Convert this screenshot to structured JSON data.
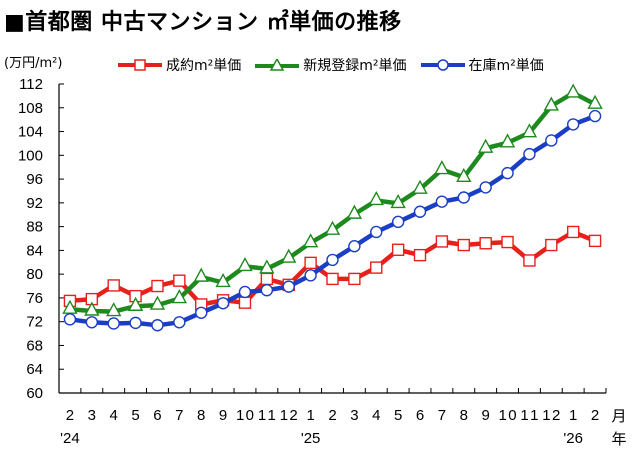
{
  "title": "■首都圏 中古マンション ㎡単価の推移",
  "unit_label": "(万円/m²)",
  "legend": [
    {
      "label": "成約m²単価",
      "color": "#e8201c",
      "marker": "square"
    },
    {
      "label": "新規登録m²単価",
      "color": "#1e8a1e",
      "marker": "triangle"
    },
    {
      "label": "在庫m²単価",
      "color": "#1a3fc4",
      "marker": "circle"
    }
  ],
  "x_axis": {
    "month_labels": [
      "2",
      "3",
      "4",
      "5",
      "6",
      "7",
      "8",
      "9",
      "10",
      "11",
      "12",
      "1",
      "2",
      "3",
      "4",
      "5",
      "6",
      "7",
      "8",
      "9",
      "10",
      "11",
      "12",
      "1",
      "2"
    ],
    "year_labels": [
      {
        "index": 0,
        "label": "'24"
      },
      {
        "index": 11,
        "label": "'25"
      },
      {
        "index": 23,
        "label": "'26"
      }
    ],
    "month_unit": "月",
    "year_unit": "年"
  },
  "chart_data": {
    "type": "line",
    "title": "■首都圏 中古マンション ㎡単価の推移",
    "xlabel": "月 / 年",
    "ylabel": "(万円/m²)",
    "ylim": [
      60,
      112
    ],
    "yticks": [
      60,
      64,
      68,
      72,
      76,
      80,
      84,
      88,
      92,
      96,
      100,
      104,
      108,
      112
    ],
    "grid": false,
    "legend_position": "top",
    "categories": [
      "'24/2",
      "'24/3",
      "'24/4",
      "'24/5",
      "'24/6",
      "'24/7",
      "'24/8",
      "'24/9",
      "'24/10",
      "'24/11",
      "'24/12",
      "'25/1",
      "'25/2",
      "'25/3",
      "'25/4",
      "'25/5",
      "'25/6",
      "'25/7",
      "'25/8",
      "'25/9",
      "'25/10",
      "'25/11",
      "'25/12",
      "'26/1",
      "'26/2"
    ],
    "series": [
      {
        "name": "成約m²単価",
        "color": "#e8201c",
        "marker": "square",
        "values": [
          75.5,
          75.8,
          78.1,
          76.3,
          78.0,
          78.9,
          74.9,
          75.6,
          75.2,
          79.2,
          78.2,
          81.9,
          79.2,
          79.2,
          81.1,
          84.1,
          83.2,
          85.5,
          84.9,
          85.2,
          85.4,
          82.3,
          84.9,
          87.1,
          85.6
        ]
      },
      {
        "name": "新規登録m²単価",
        "color": "#1e8a1e",
        "marker": "triangle",
        "values": [
          74.1,
          73.8,
          73.7,
          74.6,
          74.8,
          75.9,
          79.5,
          78.6,
          81.3,
          80.9,
          82.7,
          85.3,
          87.4,
          90.1,
          92.4,
          91.9,
          94.3,
          97.6,
          96.3,
          101.2,
          102.1,
          103.8,
          108.3,
          110.5,
          108.6
        ]
      },
      {
        "name": "在庫m²単価",
        "color": "#1a3fc4",
        "marker": "circle",
        "values": [
          72.4,
          71.9,
          71.7,
          71.8,
          71.4,
          71.9,
          73.5,
          75.1,
          77.0,
          77.3,
          77.9,
          79.8,
          82.4,
          84.7,
          87.1,
          88.8,
          90.5,
          92.2,
          92.9,
          94.6,
          97.0,
          100.2,
          102.5,
          105.2,
          106.6
        ]
      }
    ]
  }
}
